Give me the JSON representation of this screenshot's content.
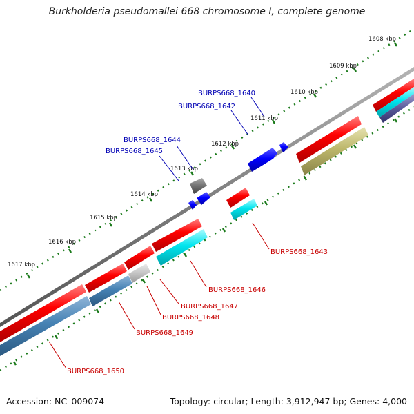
{
  "title": "Burkholderia pseudomallei 668 chromosome I, complete genome",
  "footer": {
    "accession_label": "Accession:",
    "accession": "NC_009074",
    "topology_label": "Topology:",
    "topology": "circular",
    "length_label": "Length:",
    "length": "3,912,947 bp",
    "genes_label": "Genes:",
    "genes": "4,000"
  },
  "colors": {
    "backbone": "#7f7f7f",
    "tick": "#1b7a1b",
    "forward_label": "#0000b4",
    "reverse_label": "#c80000",
    "red_gene": "#ff0000",
    "blue_gene": "#0000ff",
    "steel_gene": "#4682b4",
    "cyan_gene": "#00e5ee",
    "olive_gene": "#bdb76b",
    "grey_gene": "#777777",
    "lightgrey_gene": "#c8c8c8"
  },
  "kbp_ticks": [
    "1608 kbp",
    "1609 kbp",
    "1610 kbp",
    "1611 kbp",
    "1612 kbp",
    "1613 kbp",
    "1614 kbp",
    "1615 kbp",
    "1616 kbp",
    "1617 kbp"
  ],
  "forward_labels": [
    "BURPS668_1640",
    "BURPS668_1642",
    "BURPS668_1644",
    "BURPS668_1645"
  ],
  "reverse_labels": [
    "BURPS668_1643",
    "BURPS668_1646",
    "BURPS668_1647",
    "BURPS668_1648",
    "BURPS668_1649",
    "BURPS668_1650"
  ]
}
